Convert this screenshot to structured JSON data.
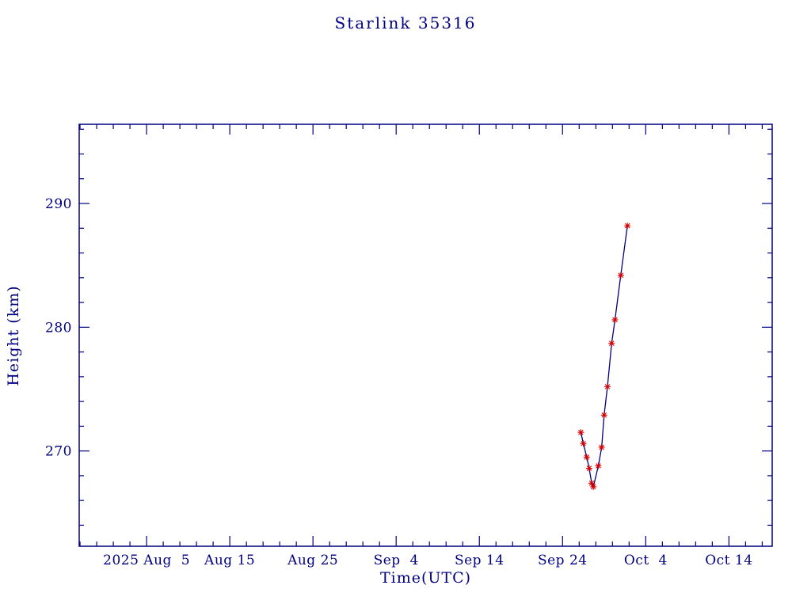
{
  "chart_data": {
    "type": "line",
    "title": "Starlink 35316",
    "xlabel": "Time(UTC)",
    "ylabel": "Height (km)",
    "marker": "asterisk",
    "legend": "none",
    "grid": false,
    "axis_color": "#000080",
    "line_color": "#000080",
    "point_color": "#d40000",
    "background": "#ffffff",
    "x_unit": "days since 2025 Aug 5",
    "xlim": [
      -8.1,
      75.2
    ],
    "ylim": [
      262.3,
      296.4
    ],
    "x_minor_step": 2,
    "y_minor_step": 2,
    "x_ticks": [
      {
        "pos": 0,
        "label": "2025 Aug  5"
      },
      {
        "pos": 10,
        "label": "Aug 15"
      },
      {
        "pos": 20,
        "label": "Aug 25"
      },
      {
        "pos": 30,
        "label": "Sep  4"
      },
      {
        "pos": 40,
        "label": "Sep 14"
      },
      {
        "pos": 50,
        "label": "Sep 24"
      },
      {
        "pos": 60,
        "label": "Oct  4"
      },
      {
        "pos": 70,
        "label": "Oct 14"
      }
    ],
    "y_ticks": [
      {
        "pos": 270,
        "label": "270"
      },
      {
        "pos": 280,
        "label": "280"
      },
      {
        "pos": 290,
        "label": "290"
      }
    ],
    "series": [
      {
        "name": "height",
        "x": [
          52.2,
          52.5,
          52.9,
          53.2,
          53.5,
          53.7,
          54.3,
          54.7,
          55.0,
          55.4,
          55.9,
          56.3,
          57.0,
          57.8
        ],
        "y": [
          271.5,
          270.6,
          269.5,
          268.6,
          267.4,
          267.1,
          268.8,
          270.3,
          272.9,
          275.2,
          278.7,
          280.6,
          284.2,
          288.2
        ]
      }
    ]
  }
}
